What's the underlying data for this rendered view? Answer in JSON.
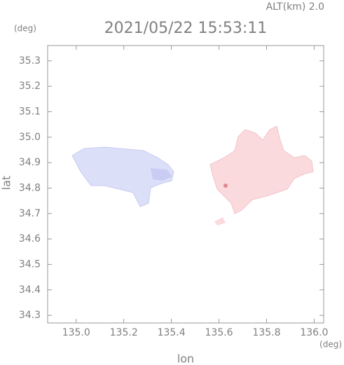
{
  "chart_data": {
    "type": "map",
    "title": "2021/05/22 15:53:11",
    "subtitle": "ALT(km) 2.0",
    "x_label": "lon",
    "y_label": "lat",
    "x_unit": "(deg)",
    "y_unit": "(deg)",
    "xlim": [
      134.88,
      136.04
    ],
    "ylim": [
      34.27,
      35.36
    ],
    "xticks": [
      {
        "value": 135.0,
        "label": "135.0"
      },
      135.2,
      135.4,
      135.6,
      135.8,
      {
        "value": 136.0,
        "label": "136.0"
      }
    ],
    "yticks": [
      34.3,
      34.4,
      34.5,
      34.6,
      34.7,
      34.8,
      34.9,
      {
        "value": 35.0,
        "label": "35.0"
      },
      35.1,
      35.2,
      35.3
    ]
  }
}
